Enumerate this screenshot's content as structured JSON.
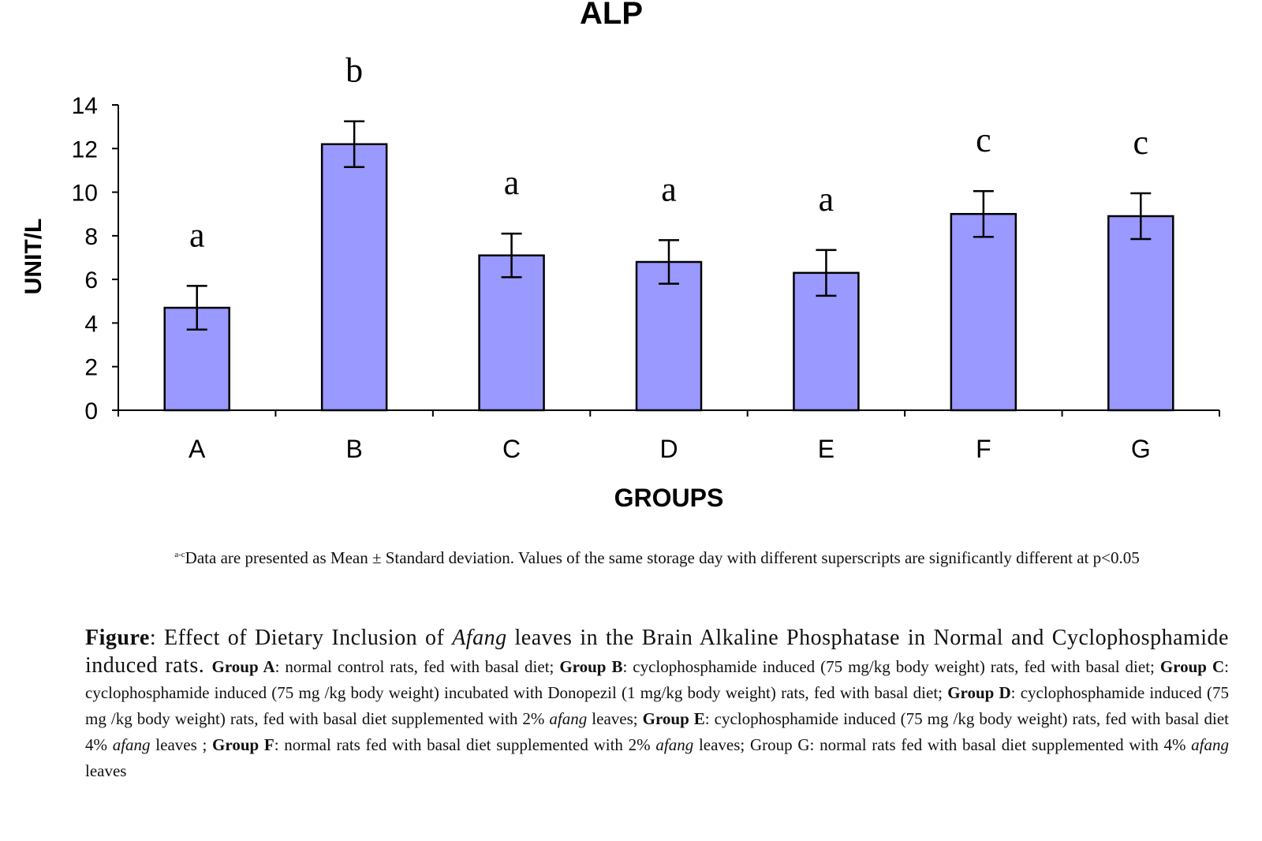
{
  "chart_data": {
    "type": "bar",
    "title": "ALP",
    "xlabel": "GROUPS",
    "ylabel": "UNIT/L",
    "categories": [
      "A",
      "B",
      "C",
      "D",
      "E",
      "F",
      "G"
    ],
    "values": [
      4.7,
      12.2,
      7.1,
      6.8,
      6.3,
      9.0,
      8.9
    ],
    "errors": [
      1.0,
      1.05,
      1.0,
      1.0,
      1.05,
      1.05,
      1.05
    ],
    "significance_letters": [
      "a",
      "b",
      "a",
      "a",
      "a",
      "c",
      "c"
    ],
    "ylim": [
      0,
      14
    ],
    "yticks": [
      "0",
      "2",
      "4",
      "6",
      "8",
      "10",
      "12",
      "14"
    ],
    "grid": false,
    "legend": "none",
    "bar_color": "#9999ff"
  },
  "note": {
    "superscript": "a-c",
    "text": "Data are presented as Mean ± Standard deviation. Values of the same storage day with different superscripts are significantly different at p<0.05"
  },
  "caption": {
    "figure_label": "Figure",
    "title_part1": ": Effect of Dietary Inclusion of ",
    "title_italic": "Afang",
    "title_part2": " leaves in the Brain Alkaline Phosphatase in Normal and Cyclophosphamide induced rats. ",
    "groups": [
      {
        "label": "Group A",
        "text": ": normal control rats, fed with basal diet; "
      },
      {
        "label": "Group B",
        "text": ": cyclophosphamide induced (75 mg/kg body weight) rats, fed with basal diet; "
      },
      {
        "label": "Group C",
        "text": ": cyclophosphamide induced (75 mg /kg body weight) incubated with Donopezil (1 mg/kg body weight) rats, fed with basal diet; "
      },
      {
        "label": "Group D",
        "text": ": cyclophosphamide induced (75 mg /kg body weight) rats, fed with basal diet supplemented with 2% ",
        "italic": "afang",
        "after": " leaves; "
      },
      {
        "label": "Group E",
        "text": ": cyclophosphamide induced (75 mg /kg body weight) rats, fed with basal diet 4% ",
        "italic": "afang",
        "after": " leaves ; "
      },
      {
        "label": "Group F",
        "text": ": normal rats fed with basal diet supplemented with 2% ",
        "italic": "afang",
        "after": " leaves; "
      }
    ],
    "group_g_text": "Group G: normal rats fed with basal diet supplemented with 4% ",
    "group_g_italic": "afang",
    "group_g_after": " leaves"
  }
}
